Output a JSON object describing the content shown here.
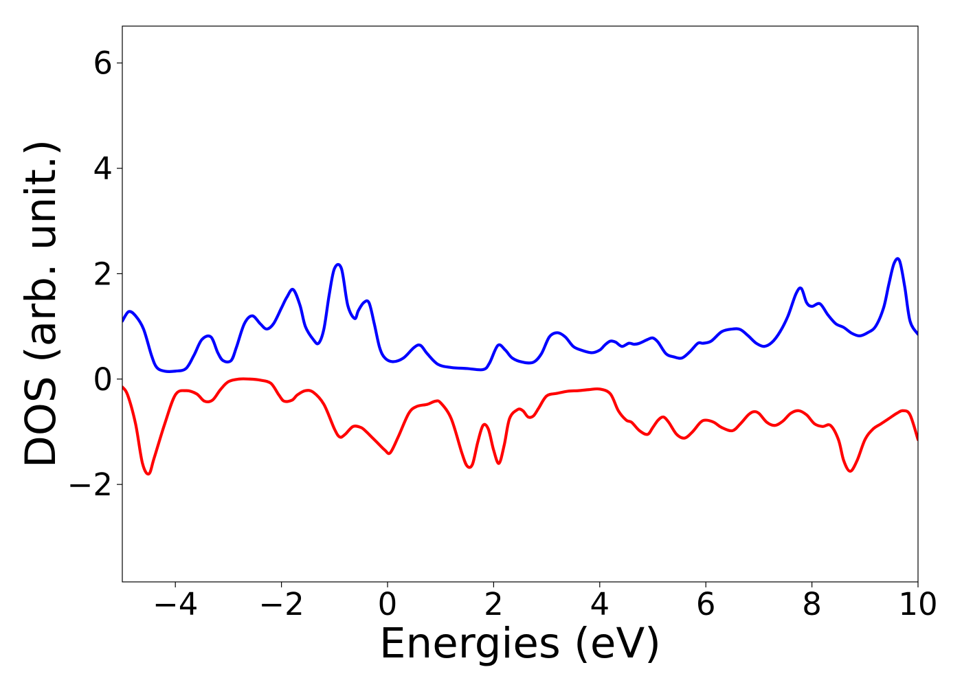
{
  "chart_data": {
    "type": "line",
    "title": "",
    "xlabel": "Energies (eV)",
    "ylabel": "DOS (arb. unit.)",
    "xlim": [
      -5,
      10
    ],
    "ylim": [
      -3.85,
      6.7
    ],
    "xticks": [
      -4,
      -2,
      0,
      2,
      4,
      6,
      8,
      10
    ],
    "xtick_labels": [
      "−4",
      "−2",
      "0",
      "2",
      "4",
      "6",
      "8",
      "10"
    ],
    "yticks": [
      -2,
      0,
      2,
      4,
      6
    ],
    "ytick_labels": [
      "−2",
      "0",
      "2",
      "4",
      "6"
    ],
    "grid": false,
    "legend": "none",
    "series": [
      {
        "color": "#0000ff",
        "x": [
          -5.0,
          -4.88,
          -4.75,
          -4.6,
          -4.45,
          -4.35,
          -4.2,
          -4.0,
          -3.8,
          -3.65,
          -3.5,
          -3.33,
          -3.2,
          -3.1,
          -2.95,
          -2.85,
          -2.7,
          -2.55,
          -2.4,
          -2.28,
          -2.15,
          -2.0,
          -1.9,
          -1.78,
          -1.65,
          -1.55,
          -1.4,
          -1.3,
          -1.2,
          -1.1,
          -1.0,
          -0.87,
          -0.75,
          -0.62,
          -0.55,
          -0.45,
          -0.35,
          -0.25,
          -0.15,
          -0.05,
          0.1,
          0.3,
          0.5,
          0.62,
          0.75,
          0.95,
          1.2,
          1.5,
          1.8,
          1.92,
          2.08,
          2.22,
          2.35,
          2.55,
          2.75,
          2.9,
          3.05,
          3.2,
          3.35,
          3.5,
          3.65,
          3.85,
          4.0,
          4.1,
          4.2,
          4.3,
          4.42,
          4.55,
          4.65,
          4.75,
          4.9,
          5.0,
          5.1,
          5.25,
          5.4,
          5.55,
          5.7,
          5.85,
          5.95,
          6.1,
          6.3,
          6.5,
          6.65,
          6.8,
          6.95,
          7.1,
          7.25,
          7.4,
          7.55,
          7.7,
          7.8,
          7.9,
          8.0,
          8.15,
          8.3,
          8.45,
          8.6,
          8.75,
          8.9,
          9.05,
          9.2,
          9.35,
          9.45,
          9.55,
          9.65,
          9.75,
          9.85,
          10.0
        ],
        "y": [
          1.1,
          1.28,
          1.2,
          0.95,
          0.45,
          0.22,
          0.15,
          0.15,
          0.2,
          0.45,
          0.75,
          0.8,
          0.5,
          0.35,
          0.35,
          0.6,
          1.05,
          1.2,
          1.05,
          0.95,
          1.05,
          1.35,
          1.55,
          1.7,
          1.4,
          1.0,
          0.75,
          0.68,
          0.95,
          1.6,
          2.1,
          2.1,
          1.4,
          1.15,
          1.3,
          1.45,
          1.45,
          1.05,
          0.6,
          0.4,
          0.33,
          0.4,
          0.6,
          0.64,
          0.48,
          0.28,
          0.22,
          0.2,
          0.18,
          0.3,
          0.64,
          0.55,
          0.4,
          0.32,
          0.32,
          0.48,
          0.8,
          0.88,
          0.8,
          0.62,
          0.55,
          0.5,
          0.55,
          0.65,
          0.72,
          0.7,
          0.62,
          0.68,
          0.66,
          0.68,
          0.75,
          0.78,
          0.7,
          0.48,
          0.42,
          0.4,
          0.52,
          0.68,
          0.68,
          0.72,
          0.9,
          0.95,
          0.94,
          0.82,
          0.68,
          0.62,
          0.7,
          0.9,
          1.2,
          1.62,
          1.72,
          1.45,
          1.38,
          1.43,
          1.22,
          1.05,
          0.98,
          0.87,
          0.82,
          0.88,
          1.0,
          1.35,
          1.8,
          2.2,
          2.25,
          1.75,
          1.1,
          0.85
        ]
      },
      {
        "color": "#ff0000",
        "x": [
          -5.0,
          -4.9,
          -4.75,
          -4.62,
          -4.5,
          -4.4,
          -4.2,
          -4.0,
          -3.8,
          -3.6,
          -3.45,
          -3.3,
          -3.15,
          -3.0,
          -2.8,
          -2.6,
          -2.4,
          -2.2,
          -2.05,
          -1.95,
          -1.8,
          -1.7,
          -1.55,
          -1.4,
          -1.2,
          -1.0,
          -0.9,
          -0.8,
          -0.65,
          -0.5,
          -0.4,
          -0.3,
          -0.2,
          -0.05,
          0.05,
          0.2,
          0.4,
          0.55,
          0.75,
          0.9,
          1.0,
          1.2,
          1.4,
          1.5,
          1.6,
          1.7,
          1.8,
          1.9,
          2.0,
          2.1,
          2.2,
          2.3,
          2.45,
          2.55,
          2.65,
          2.75,
          2.85,
          3.0,
          3.2,
          3.4,
          3.6,
          3.8,
          4.0,
          4.2,
          4.35,
          4.5,
          4.6,
          4.75,
          4.9,
          5.0,
          5.1,
          5.2,
          5.3,
          5.45,
          5.6,
          5.75,
          5.9,
          6.0,
          6.15,
          6.3,
          6.5,
          6.65,
          6.8,
          6.9,
          7.0,
          7.15,
          7.3,
          7.45,
          7.6,
          7.75,
          7.9,
          8.05,
          8.2,
          8.35,
          8.5,
          8.6,
          8.72,
          8.85,
          9.0,
          9.15,
          9.3,
          9.45,
          9.6,
          9.72,
          9.85,
          10.0
        ],
        "y": [
          -0.15,
          -0.3,
          -0.85,
          -1.6,
          -1.8,
          -1.5,
          -0.85,
          -0.3,
          -0.22,
          -0.28,
          -0.42,
          -0.4,
          -0.2,
          -0.05,
          0.0,
          0.0,
          -0.02,
          -0.08,
          -0.3,
          -0.42,
          -0.4,
          -0.3,
          -0.22,
          -0.25,
          -0.48,
          -0.95,
          -1.1,
          -1.05,
          -0.9,
          -0.92,
          -1.0,
          -1.1,
          -1.2,
          -1.35,
          -1.4,
          -1.1,
          -0.65,
          -0.52,
          -0.48,
          -0.42,
          -0.45,
          -0.75,
          -1.4,
          -1.65,
          -1.62,
          -1.2,
          -0.88,
          -0.95,
          -1.35,
          -1.6,
          -1.25,
          -0.75,
          -0.58,
          -0.6,
          -0.72,
          -0.7,
          -0.55,
          -0.32,
          -0.27,
          -0.23,
          -0.22,
          -0.2,
          -0.19,
          -0.28,
          -0.6,
          -0.78,
          -0.82,
          -0.98,
          -1.05,
          -0.92,
          -0.78,
          -0.72,
          -0.82,
          -1.05,
          -1.12,
          -1.0,
          -0.82,
          -0.78,
          -0.82,
          -0.92,
          -0.98,
          -0.85,
          -0.68,
          -0.62,
          -0.65,
          -0.82,
          -0.88,
          -0.8,
          -0.65,
          -0.6,
          -0.68,
          -0.85,
          -0.9,
          -0.88,
          -1.15,
          -1.55,
          -1.75,
          -1.55,
          -1.15,
          -0.95,
          -0.85,
          -0.75,
          -0.65,
          -0.6,
          -0.68,
          -1.15
        ]
      }
    ]
  }
}
